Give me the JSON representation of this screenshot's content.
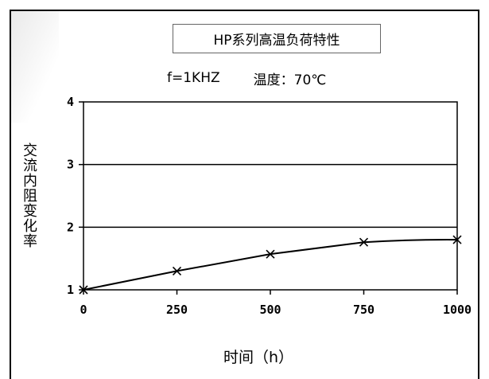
{
  "chart_data": {
    "type": "line",
    "title": "HP系列高温负荷特性",
    "conditions": {
      "frequency": "f=1KHZ",
      "temperature": "温度：70℃"
    },
    "xlabel": "时间（h）",
    "ylabel": "交流内阻变化率",
    "x": [
      0,
      250,
      500,
      750,
      1000
    ],
    "x_ticks": [
      "0",
      "250",
      "500",
      "750",
      "1000"
    ],
    "y_ticks": [
      "1",
      "2",
      "3",
      "4"
    ],
    "xlim": [
      0,
      1000
    ],
    "ylim": [
      1,
      4
    ],
    "series": [
      {
        "values": [
          1.0,
          1.3,
          1.57,
          1.76,
          1.8
        ],
        "marker": "x",
        "color": "#000000"
      }
    ],
    "grid": "horizontal"
  }
}
